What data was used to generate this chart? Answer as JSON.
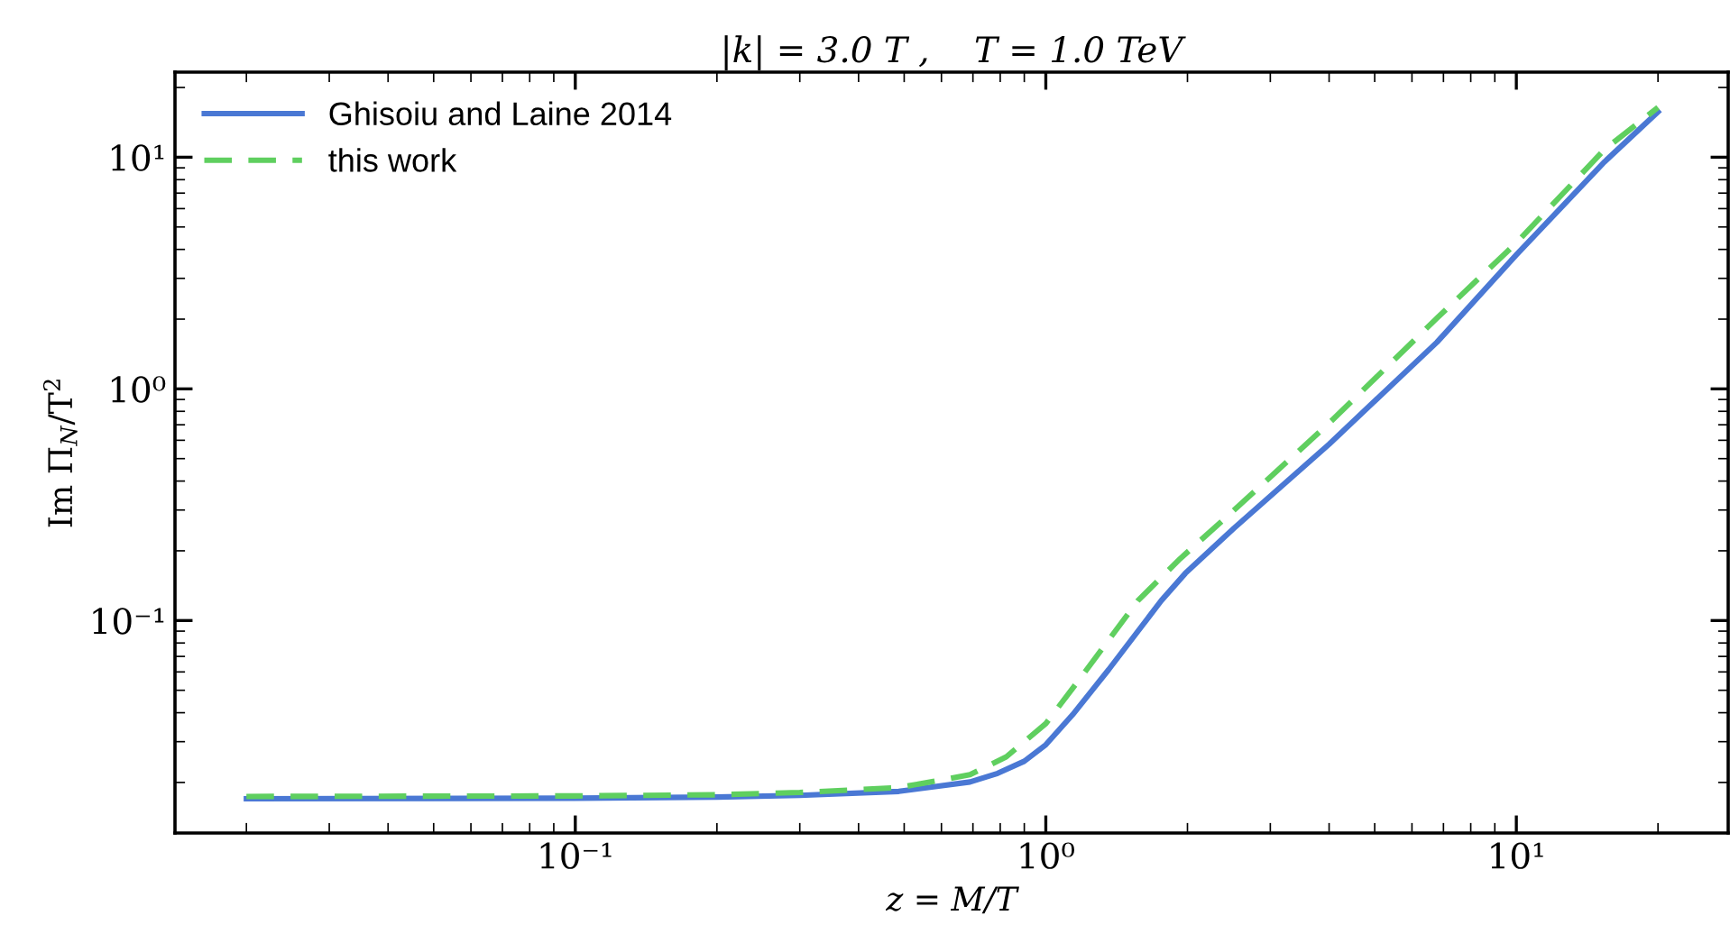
{
  "chart_data": {
    "type": "line",
    "title": "|k| = 3.0 T ,    T = 1.0 TeV",
    "xlabel": "z = M/T",
    "ylabel": "Im Π$_{N}$/T$^{2}$",
    "log": "xy",
    "xlim": [
      0.0141,
      28.2
    ],
    "ylim": [
      0.0121,
      23.3
    ],
    "xticks": [
      {
        "value": 0.1,
        "label": "10⁻¹"
      },
      {
        "value": 1,
        "label": "10⁰"
      },
      {
        "value": 10,
        "label": "10¹"
      }
    ],
    "yticks": [
      {
        "value": 0.1,
        "label": "10⁻¹"
      },
      {
        "value": 1,
        "label": "10⁰"
      },
      {
        "value": 10,
        "label": "10¹"
      }
    ],
    "legend": "top left",
    "grid": false,
    "series": [
      {
        "name": "Ghisoiu and Laine 2014",
        "color": "#4a78d4",
        "line_style": "solid",
        "x": [
          0.02,
          0.1,
          0.2,
          0.3,
          0.487,
          0.69,
          0.79,
          0.9,
          1.0,
          1.14,
          1.36,
          1.76,
          1.98,
          2.51,
          4.0,
          6.78,
          10,
          15.4,
          20
        ],
        "values": [
          0.017,
          0.0171,
          0.0173,
          0.0176,
          0.0183,
          0.0201,
          0.0219,
          0.0247,
          0.0291,
          0.0392,
          0.0614,
          0.122,
          0.16,
          0.25,
          0.577,
          1.59,
          3.79,
          9.56,
          15.7
        ]
      },
      {
        "name": "this work",
        "color": "#5fcf5f",
        "line_style": "dashed",
        "x": [
          0.02,
          0.1,
          0.2,
          0.3,
          0.487,
          0.69,
          0.824,
          1.0,
          1.17,
          1.57,
          1.93,
          2.51,
          4.0,
          6.78,
          10,
          15.4,
          20
        ],
        "values": [
          0.0174,
          0.0175,
          0.0177,
          0.0181,
          0.019,
          0.0216,
          0.0258,
          0.0359,
          0.0546,
          0.122,
          0.185,
          0.299,
          0.711,
          2.02,
          4.27,
          10.8,
          16.4
        ]
      }
    ]
  }
}
